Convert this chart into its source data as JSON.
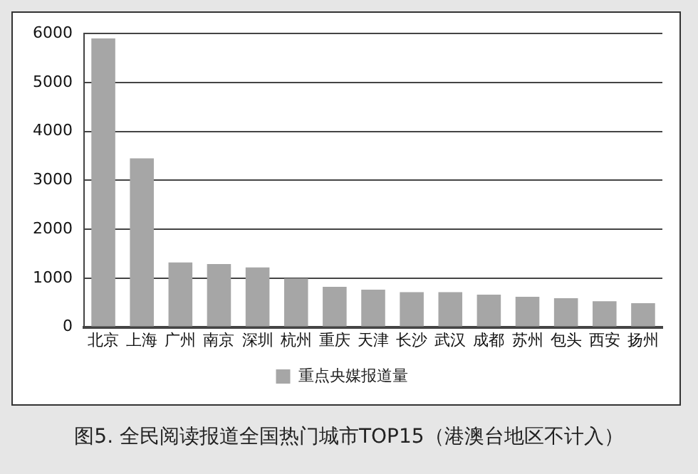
{
  "chart_data": {
    "type": "bar",
    "title": "图5. 全民阅读报道全国热门城市TOP15（港澳台地区不计入）",
    "categories": [
      "北京",
      "上海",
      "广州",
      "南京",
      "深圳",
      "杭州",
      "重庆",
      "天津",
      "长沙",
      "武汉",
      "成都",
      "苏州",
      "包头",
      "西安",
      "扬州"
    ],
    "series": [
      {
        "name": "重点央媒报道量",
        "color": "#a6a6a6",
        "values": [
          5900,
          3450,
          1320,
          1290,
          1220,
          995,
          825,
          765,
          715,
          715,
          665,
          620,
          590,
          530,
          490
        ]
      }
    ],
    "ylim": [
      0,
      6000
    ],
    "yticks": [
      0,
      1000,
      2000,
      3000,
      4000,
      5000,
      6000
    ],
    "grid": "y",
    "legend": "bottom"
  }
}
